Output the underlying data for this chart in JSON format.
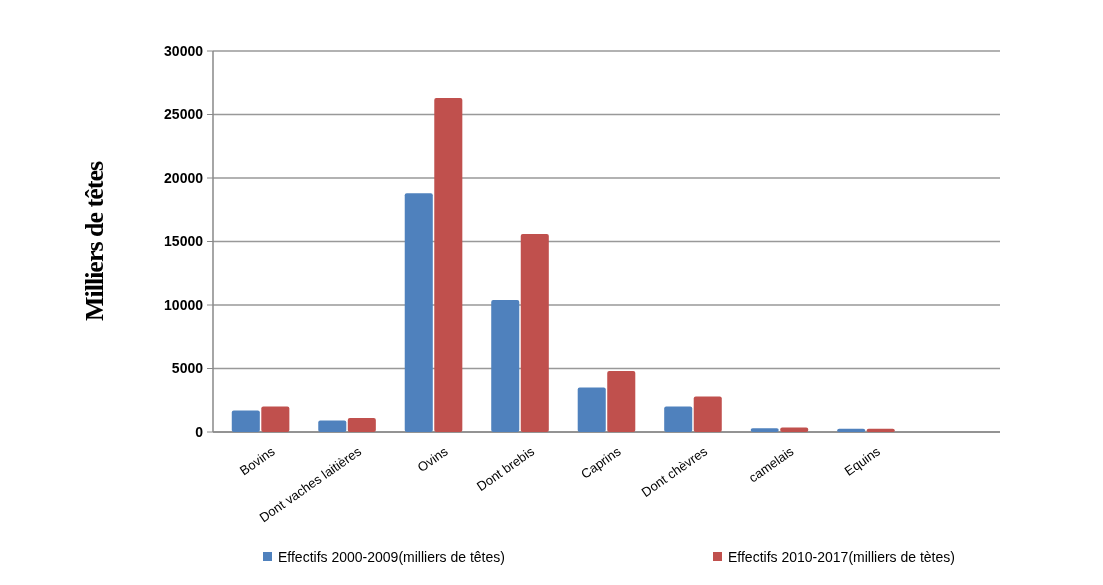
{
  "chart_data": {
    "type": "bar",
    "ylabel": "Milliers de têtes",
    "categories": [
      "Bovins",
      "Dont vaches laitières",
      "Ovins",
      "Dont brebis",
      "Caprins",
      "Dont chèvres",
      "camelais",
      "Equins"
    ],
    "series": [
      {
        "name": "Effectifs 2000-2009(milliers  de têtes)",
        "color": "#4f81bd",
        "values": [
          1700,
          900,
          18800,
          10400,
          3500,
          2000,
          300,
          250
        ]
      },
      {
        "name": "Effectifs 2010-2017(milliers  de tètes)",
        "color": "#c0504d",
        "values": [
          2000,
          1100,
          26300,
          15600,
          4800,
          2800,
          350,
          250
        ]
      }
    ],
    "ylim": [
      0,
      30000
    ],
    "yticks": [
      0,
      5000,
      10000,
      15000,
      20000,
      25000,
      30000
    ],
    "grid": "y",
    "legend": "bottom"
  }
}
